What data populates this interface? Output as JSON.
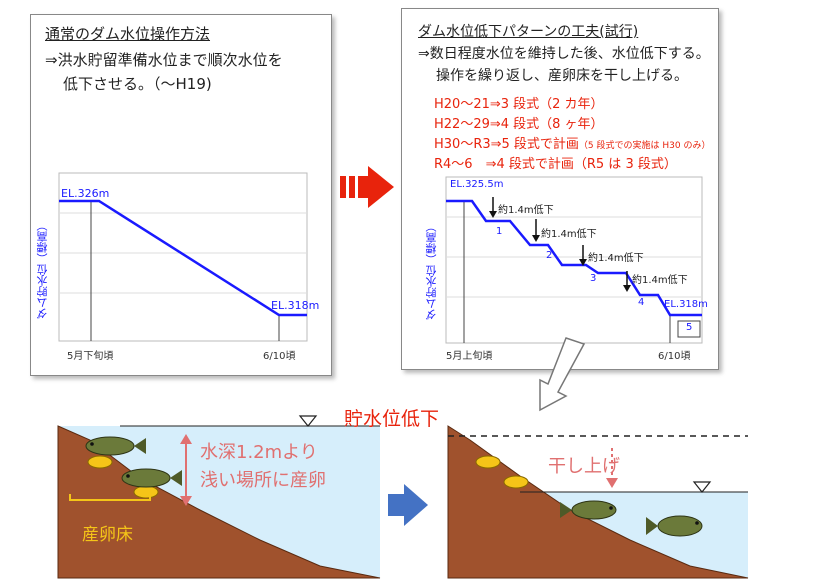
{
  "left_panel": {
    "title": "通常のダム水位操作方法",
    "line1": "⇒洪水貯留準備水位まで順次水位を",
    "line2": "低下させる。（～H19)",
    "chart": {
      "ylabel": "ダム貯水位（標高）",
      "start_label": "EL.326m",
      "end_label": "EL.318m",
      "x_start": "5月下旬頃",
      "x_end": "6/10頃"
    }
  },
  "right_panel": {
    "title": "ダム水位低下パターンの工夫(試行)",
    "line1": "⇒数日程度水位を維持した後、水位低下する。",
    "line2": "操作を繰り返し、産卵床を干し上げる。",
    "notes": [
      {
        "main": "H20～21⇒3 段式（2 カ年）",
        "small": ""
      },
      {
        "main": "H22～29⇒4 段式（8 ヶ年）",
        "small": ""
      },
      {
        "main": "H30～R3⇒5 段式で計画",
        "small": "（5 段式での実施は H30 のみ）"
      },
      {
        "main": "R4～6　⇒4 段式で計画（R5 は 3 段式）",
        "small": ""
      }
    ],
    "chart": {
      "ylabel": "ダム貯水位（標高）",
      "start_label": "EL.325.5m",
      "end_label": "EL.318m",
      "drop_label": "約1.4m低下",
      "steps": [
        "1",
        "2",
        "3",
        "4",
        "5"
      ],
      "x_start": "5月上旬頃",
      "x_end": "6/10頃"
    }
  },
  "bottom": {
    "lowering_label": "貯水位低下",
    "depth_label_1": "水深1.2mより",
    "depth_label_2": "浅い場所に産卵",
    "bed_label": "産卵床",
    "dry_label": "干し上げ"
  },
  "colors": {
    "line_blue": "#1a1aff",
    "accent_red": "#e8230c",
    "water": "#d6eefb",
    "soil": "#a0522d",
    "egg_yellow": "#f5c518"
  }
}
